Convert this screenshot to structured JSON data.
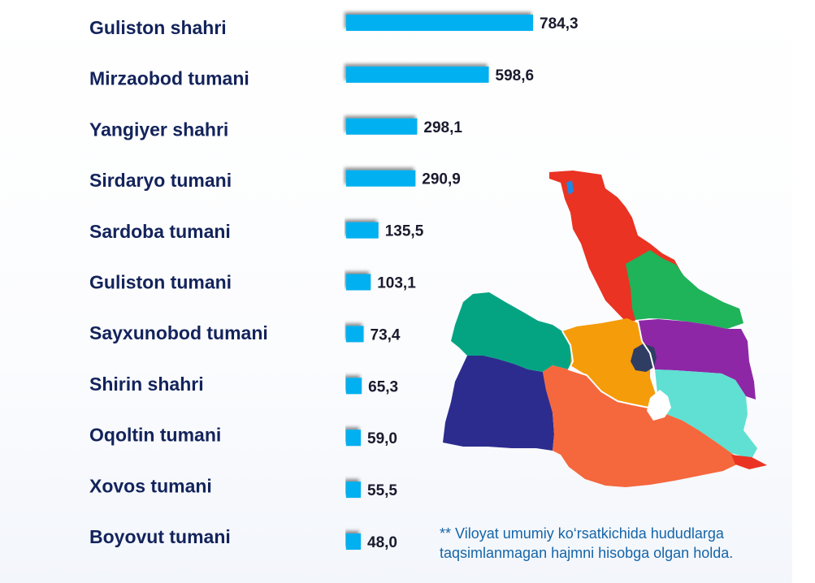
{
  "chart_data": {
    "type": "bar",
    "orientation": "horizontal",
    "categories": [
      "Guliston shahri",
      "Mirzaobod tumani",
      "Yangiyer shahri",
      "Sirdaryo tumani",
      "Sardoba tumani",
      "Guliston tumani",
      "Sayxunobod tumani",
      "Shirin shahri",
      "Oqoltin tumani",
      "Xovos tumani",
      "Boyovut tumani"
    ],
    "values": [
      784.3,
      598.6,
      298.1,
      290.9,
      135.5,
      103.1,
      73.4,
      65.3,
      59.0,
      55.5,
      48.0
    ],
    "value_labels": [
      "784,3",
      "598,6",
      "298,1",
      "290,9",
      "135,5",
      "103,1",
      "73,4",
      "65,3",
      "59,0",
      "55,5",
      "48,0"
    ],
    "bar_color": "#00b0f0",
    "title": "",
    "xlabel": "",
    "ylabel": "",
    "grid": false,
    "legend": "none"
  },
  "footnote": {
    "line1": "** Viloyat umumiy ko‘rsatkichida hududlarga",
    "line2": "taqsimlanmagan hajmni hisobga olgan holda."
  },
  "colors": {
    "label_text": "#13235b",
    "value_text": "#1a1a2e",
    "footnote_text": "#1565a8",
    "map_regions": [
      "#ea3323",
      "#1fb35a",
      "#04a483",
      "#f59c0a",
      "#8e27a6",
      "#2f3d63",
      "#5fe0d2",
      "#2c2c8e",
      "#f5673d"
    ]
  }
}
